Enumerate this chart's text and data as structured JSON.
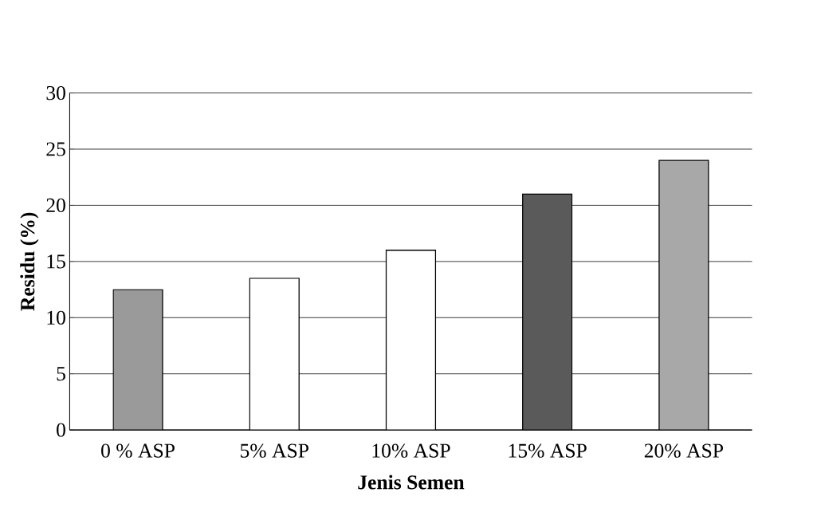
{
  "chart_data": {
    "type": "bar",
    "xlabel": "Jenis Semen",
    "ylabel": "Residu (%)",
    "categories": [
      "0 % ASP",
      "5% ASP",
      "10% ASP",
      "15% ASP",
      "20% ASP"
    ],
    "values": [
      12.5,
      13.5,
      16,
      21,
      24
    ],
    "colors": [
      "#9a9a9a",
      "#ffffff",
      "#ffffff",
      "#5a5a5a",
      "#a8a8a8"
    ],
    "ylim": [
      0,
      30
    ],
    "yticks": [
      0,
      5,
      10,
      15,
      20,
      25,
      30
    ],
    "grid": "y"
  }
}
